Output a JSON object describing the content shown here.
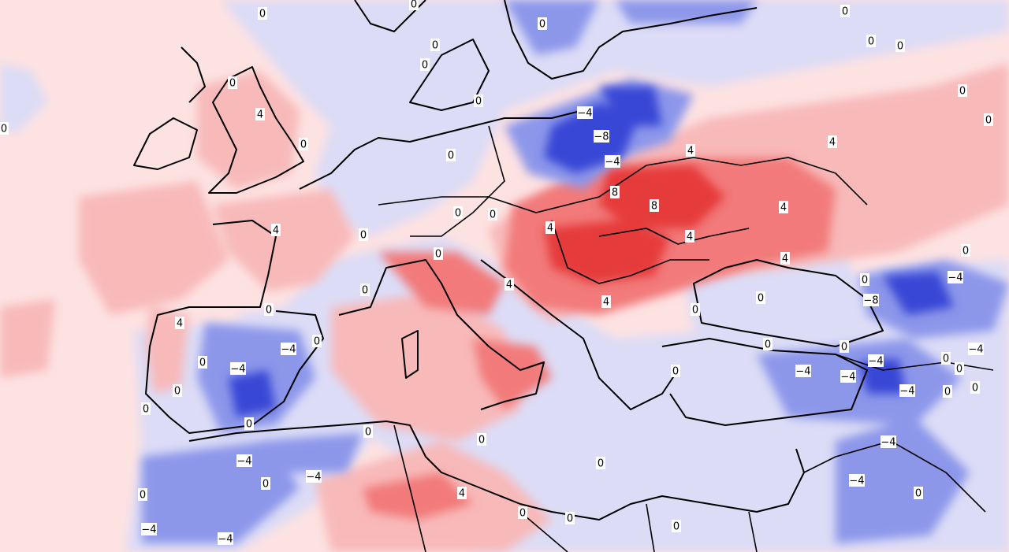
{
  "contour_labels": [
    "0",
    "0",
    "0",
    "0",
    "0",
    "0",
    "0",
    "0",
    "0",
    "0",
    "0",
    "0",
    "4",
    "0",
    "0",
    "−4",
    "−8",
    "0",
    "4",
    "4",
    "−4",
    "8",
    "8",
    "4",
    "0",
    "0",
    "0",
    "4",
    "4",
    "4",
    "0",
    "4",
    "0",
    "−4",
    "0",
    "−8",
    "0",
    "4",
    "0",
    "4",
    "0",
    "0",
    "4",
    "0",
    "−4",
    "0",
    "−4",
    "0",
    "0",
    "0",
    "−4",
    "0",
    "−4",
    "−4",
    "−4",
    "−4",
    "0",
    "0",
    "0",
    "0",
    "0",
    "0",
    "0",
    "−4",
    "0",
    "−4",
    "0",
    "−4",
    "0",
    "0",
    "4",
    "0",
    "−4",
    "0",
    "0",
    "−4",
    "−4",
    "0"
  ]
}
